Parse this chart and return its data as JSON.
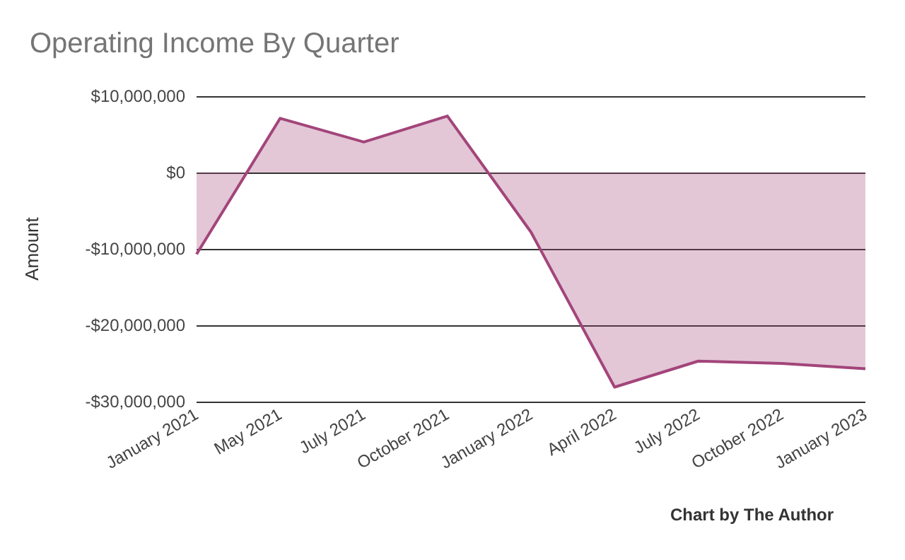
{
  "chart_data": {
    "type": "area",
    "title": "Operating Income By Quarter",
    "ylabel": "Amount",
    "categories": [
      "January 2021",
      "May 2021",
      "July 2021",
      "October 2021",
      "January 2022",
      "April 2022",
      "July 2022",
      "October 2022",
      "January 2023"
    ],
    "series": [
      {
        "color": "#a3457a",
        "values": [
          -10700000,
          7100000,
          4000000,
          7400000,
          -7800000,
          -28100000,
          -24700000,
          -25000000,
          -25700000
        ]
      }
    ],
    "ylim": [
      -30000000,
      10000000
    ],
    "yticks": [
      {
        "value": -30000000,
        "label": "-$30,000,000"
      },
      {
        "value": -20000000,
        "label": "-$20,000,000"
      },
      {
        "value": -10000000,
        "label": "-$10,000,000"
      },
      {
        "value": 0,
        "label": "$0"
      },
      {
        "value": 10000000,
        "label": "$10,000,000"
      }
    ],
    "grid": "y",
    "annotations": [
      "Chart by The Author"
    ]
  }
}
